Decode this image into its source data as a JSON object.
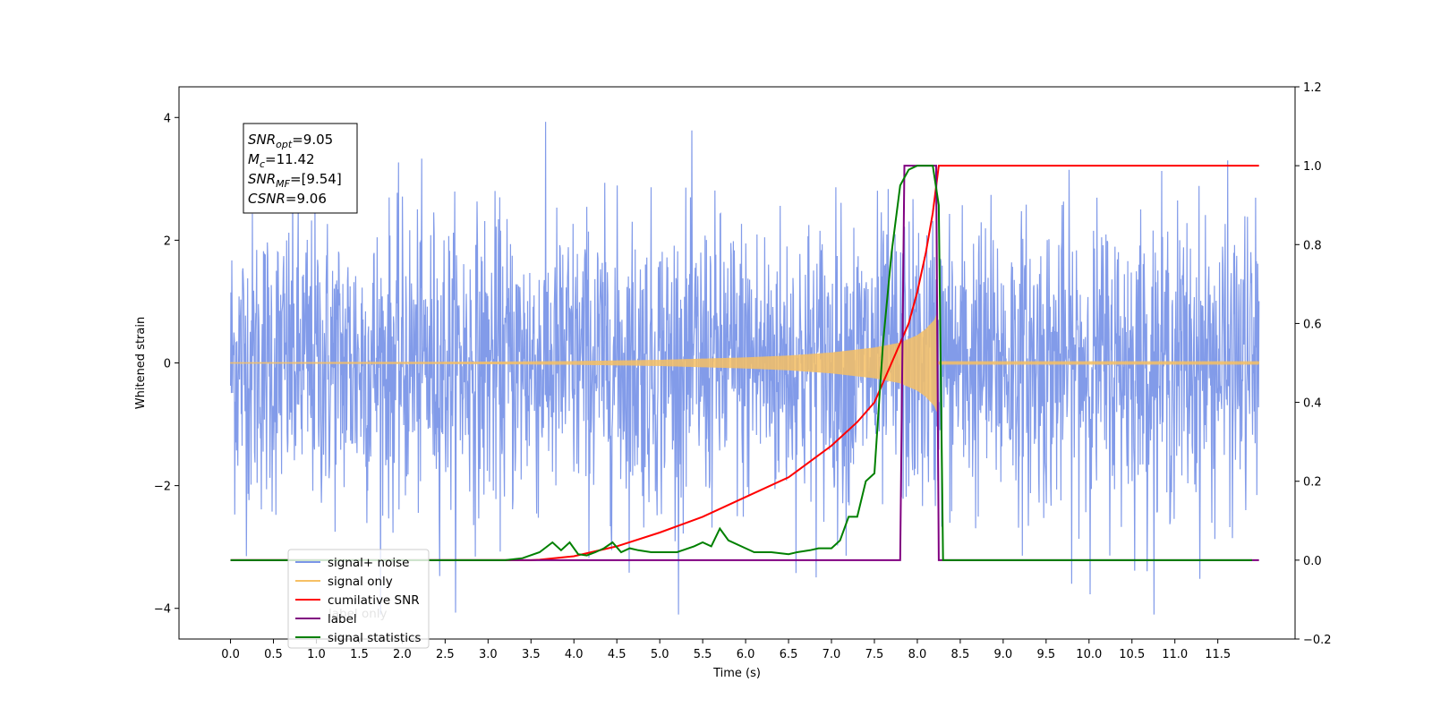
{
  "chart_data": {
    "type": "line",
    "xlabel": "Time (s)",
    "ylabel": "Whitened strain",
    "xlim": [
      -0.6,
      12.4
    ],
    "ylim_left": [
      -4.5,
      4.5
    ],
    "ylim_right": [
      -0.2,
      1.2
    ],
    "x_ticks": [
      0.0,
      0.5,
      1.0,
      1.5,
      2.0,
      2.5,
      3.0,
      3.5,
      4.0,
      4.5,
      5.0,
      5.5,
      6.0,
      6.5,
      7.0,
      7.5,
      8.0,
      8.5,
      9.0,
      9.5,
      10.0,
      10.5,
      11.0,
      11.5
    ],
    "x_tick_labels": [
      "0.0",
      "0.5",
      "1.0",
      "1.5",
      "2.0",
      "2.5",
      "3.0",
      "3.5",
      "4.0",
      "4.5",
      "5.0",
      "5.5",
      "6.0",
      "6.5",
      "7.0",
      "7.5",
      "8.0",
      "8.5",
      "9.0",
      "9.5",
      "10.0",
      "10.5",
      "11.0",
      "11.5"
    ],
    "y_left_ticks": [
      -4,
      -2,
      0,
      2,
      4
    ],
    "y_left_tick_labels": [
      "−4",
      "−2",
      "0",
      "2",
      "4"
    ],
    "y_right_ticks": [
      -0.2,
      0.0,
      0.2,
      0.4,
      0.6,
      0.8,
      1.0,
      1.2
    ],
    "y_right_tick_labels": [
      "−0.2",
      "0.0",
      "0.2",
      "0.4",
      "0.6",
      "0.8",
      "1.0",
      "1.2"
    ],
    "grid": false,
    "legend_position": "lower-left",
    "series": [
      {
        "name": "signal+ noise",
        "axis": "left",
        "color": "#7b96e8",
        "kind": "noise",
        "x_range": [
          0.0,
          11.98
        ],
        "amplitude_typical": 1.2,
        "y_max": 4.1,
        "y_min": -4.1
      },
      {
        "name": "signal only",
        "axis": "left",
        "color": "#f6c064",
        "kind": "chirp",
        "x_range": [
          0.0,
          11.98
        ],
        "envelope": {
          "x": [
            0.0,
            3.0,
            4.0,
            5.0,
            6.0,
            6.5,
            7.0,
            7.5,
            7.8,
            8.0,
            8.1,
            8.2,
            8.23
          ],
          "y": [
            0.01,
            0.02,
            0.03,
            0.05,
            0.09,
            0.12,
            0.17,
            0.25,
            0.33,
            0.45,
            0.55,
            0.7,
            0.8
          ]
        },
        "merger_time": 8.23
      },
      {
        "name": "cumilative SNR",
        "axis": "right",
        "color": "#ff0000",
        "x": [
          0.0,
          3.5,
          3.6,
          4.0,
          4.5,
          5.0,
          5.5,
          6.0,
          6.5,
          7.0,
          7.3,
          7.5,
          7.7,
          7.9,
          8.0,
          8.1,
          8.18,
          8.25,
          8.3,
          11.98
        ],
        "y": [
          0.0,
          0.0,
          0.001,
          0.01,
          0.035,
          0.07,
          0.11,
          0.16,
          0.21,
          0.29,
          0.35,
          0.4,
          0.5,
          0.6,
          0.68,
          0.78,
          0.88,
          1.0,
          1.0,
          1.0
        ]
      },
      {
        "name": "label",
        "axis": "right",
        "color": "#800080",
        "x": [
          0.0,
          7.8,
          7.85,
          8.22,
          8.25,
          11.98
        ],
        "y": [
          0.0,
          0.0,
          1.0,
          1.0,
          0.0,
          0.0
        ]
      },
      {
        "name": "signal statistics",
        "axis": "right",
        "color": "#008000",
        "x": [
          0.0,
          3.2,
          3.4,
          3.6,
          3.75,
          3.85,
          3.95,
          4.05,
          4.15,
          4.25,
          4.35,
          4.45,
          4.55,
          4.65,
          4.75,
          4.9,
          5.0,
          5.2,
          5.4,
          5.5,
          5.6,
          5.7,
          5.8,
          6.0,
          6.1,
          6.3,
          6.5,
          6.6,
          6.75,
          6.85,
          7.0,
          7.1,
          7.2,
          7.3,
          7.4,
          7.5,
          7.6,
          7.7,
          7.8,
          7.9,
          8.0,
          8.1,
          8.18,
          8.25,
          8.3,
          11.9
        ],
        "y": [
          0.0,
          0.0,
          0.005,
          0.02,
          0.045,
          0.025,
          0.045,
          0.015,
          0.012,
          0.02,
          0.03,
          0.045,
          0.02,
          0.03,
          0.025,
          0.02,
          0.02,
          0.02,
          0.035,
          0.045,
          0.035,
          0.08,
          0.05,
          0.03,
          0.02,
          0.02,
          0.015,
          0.02,
          0.025,
          0.03,
          0.03,
          0.05,
          0.11,
          0.11,
          0.2,
          0.22,
          0.55,
          0.78,
          0.95,
          0.99,
          1.0,
          1.0,
          1.0,
          0.9,
          0.0,
          0.0
        ]
      }
    ],
    "info_box": [
      {
        "base": "SNR",
        "sub": "opt",
        "rest": "=9.05"
      },
      {
        "base": "M",
        "sub": "c",
        "rest": "=11.42"
      },
      {
        "base": "SNR",
        "sub": "MF",
        "rest": "=[9.54]"
      },
      {
        "base": "CSNR",
        "sub": "",
        "rest": "=9.06"
      }
    ],
    "legend": [
      {
        "label": "signal+ noise",
        "color": "#7b96e8"
      },
      {
        "label": "signal only",
        "color": "#f6c064"
      },
      {
        "label": "cumilative SNR",
        "color": "#ff0000"
      },
      {
        "label": "label",
        "color": "#800080"
      },
      {
        "label": "signal statistics",
        "color": "#008000"
      }
    ],
    "ghost_text": "label only"
  }
}
